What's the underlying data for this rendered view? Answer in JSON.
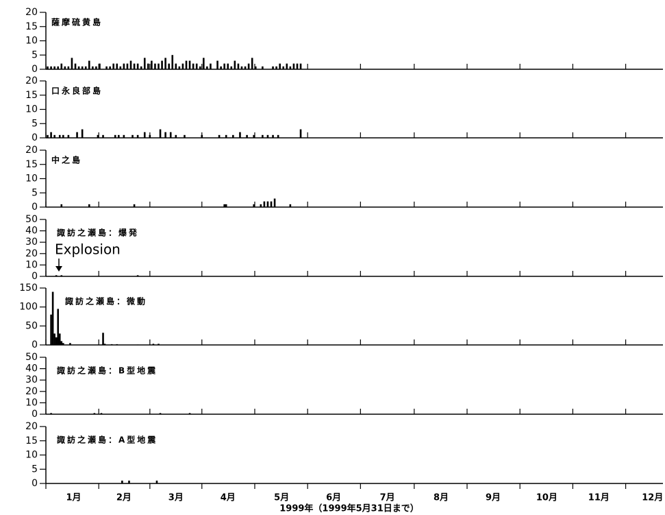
{
  "chart_data": [
    {
      "type": "bar",
      "title": "薩摩硫黄島",
      "color": "#000000",
      "xlim": [
        0,
        356
      ],
      "ylim": [
        0,
        20
      ],
      "yticks": [
        0,
        5,
        10,
        15,
        20
      ],
      "x": [
        1,
        3,
        5,
        7,
        9,
        11,
        13,
        15,
        17,
        19,
        21,
        23,
        25,
        27,
        29,
        31,
        35,
        37,
        39,
        41,
        43,
        45,
        47,
        49,
        51,
        53,
        55,
        57,
        59,
        61,
        63,
        65,
        67,
        69,
        71,
        73,
        75,
        77,
        79,
        81,
        83,
        85,
        87,
        89,
        91,
        93,
        95,
        99,
        101,
        103,
        105,
        107,
        109,
        111,
        113,
        115,
        117,
        119,
        121,
        125,
        131,
        133,
        135,
        137,
        139,
        141,
        143,
        145,
        147
      ],
      "values": [
        1,
        1,
        1,
        1,
        2,
        1,
        1,
        4,
        2,
        1,
        1,
        1,
        3,
        1,
        1,
        2,
        1,
        1,
        2,
        2,
        1,
        2,
        2,
        3,
        2,
        2,
        1,
        4,
        2,
        3,
        2,
        2,
        3,
        4,
        2,
        5,
        2,
        1,
        2,
        3,
        3,
        2,
        2,
        1,
        4,
        1,
        2,
        3,
        1,
        2,
        2,
        1,
        3,
        2,
        1,
        1,
        2,
        4,
        1,
        1,
        1,
        1,
        2,
        1,
        2,
        1,
        2,
        2,
        2
      ]
    },
    {
      "type": "bar",
      "title": "口永良部島",
      "color": "#000000",
      "xlim": [
        0,
        356
      ],
      "ylim": [
        0,
        20
      ],
      "yticks": [
        0,
        5,
        10,
        15,
        20
      ],
      "x": [
        1,
        3,
        5,
        8,
        10,
        13,
        18,
        21,
        30,
        33,
        40,
        42,
        45,
        50,
        53,
        57,
        60,
        66,
        69,
        72,
        75,
        80,
        90,
        100,
        104,
        108,
        112,
        116,
        120,
        125,
        128,
        131,
        134,
        147
      ],
      "values": [
        1,
        2,
        1,
        1,
        1,
        1,
        2,
        3,
        1,
        1,
        1,
        1,
        1,
        1,
        1,
        2,
        1,
        3,
        2,
        2,
        1,
        1,
        1,
        1,
        1,
        1,
        2,
        1,
        1,
        1,
        1,
        1,
        1,
        3
      ]
    },
    {
      "type": "bar",
      "title": "中之島",
      "color": "#000000",
      "xlim": [
        0,
        356
      ],
      "ylim": [
        0,
        20
      ],
      "yticks": [
        0,
        5,
        10,
        15,
        20
      ],
      "x": [
        9,
        25,
        51,
        103,
        104,
        120,
        124,
        126,
        128,
        130,
        132,
        141
      ],
      "values": [
        1,
        1,
        1,
        1,
        1,
        1,
        1,
        2,
        2,
        2,
        3,
        1
      ]
    },
    {
      "type": "bar",
      "title": "諏訪之瀬島：爆発",
      "annotation": "Explosion",
      "color": "#000000",
      "xlim": [
        0,
        356
      ],
      "ylim": [
        0,
        50
      ],
      "yticks": [
        0,
        10,
        20,
        30,
        40,
        50
      ],
      "x": [
        6,
        9,
        53
      ],
      "values": [
        1,
        1,
        1
      ]
    },
    {
      "type": "bar",
      "title": "諏訪之瀬島：微動",
      "color": "#000000",
      "xlim": [
        0,
        356
      ],
      "ylim": [
        0,
        150
      ],
      "yticks": [
        0,
        50,
        100,
        150
      ],
      "x": [
        3,
        4,
        5,
        6,
        7,
        8,
        9,
        10,
        14,
        33,
        34,
        38,
        41,
        53,
        62,
        65
      ],
      "values": [
        80,
        140,
        30,
        20,
        95,
        30,
        10,
        5,
        5,
        32,
        3,
        2,
        2,
        1,
        3,
        3
      ]
    },
    {
      "type": "bar",
      "title": "諏訪之瀬島：B型地震",
      "color": "#000000",
      "xlim": [
        0,
        356
      ],
      "ylim": [
        0,
        50
      ],
      "yticks": [
        0,
        10,
        20,
        30,
        40,
        50
      ],
      "x": [
        3,
        28,
        32,
        66,
        83
      ],
      "values": [
        1,
        1,
        1,
        1,
        1
      ]
    },
    {
      "type": "bar",
      "title": "諏訪之瀬島：A型地震",
      "color": "#000000",
      "xlim": [
        0,
        356
      ],
      "ylim": [
        0,
        20
      ],
      "yticks": [
        0,
        5,
        10,
        15,
        20
      ],
      "x": [
        44,
        48,
        64
      ],
      "values": [
        1,
        1,
        1
      ],
      "xlabel": "1999年（1999年5月31日まで）",
      "xticks": [
        {
          "value": 16,
          "label": "1月"
        },
        {
          "value": 45,
          "label": "2月"
        },
        {
          "value": 75,
          "label": "3月"
        },
        {
          "value": 105,
          "label": "4月"
        },
        {
          "value": 136,
          "label": "5月"
        },
        {
          "value": 166,
          "label": "6月"
        },
        {
          "value": 197,
          "label": "7月"
        },
        {
          "value": 228,
          "label": "8月"
        },
        {
          "value": 258,
          "label": "9月"
        },
        {
          "value": 289,
          "label": "10月"
        },
        {
          "value": 319,
          "label": "11月"
        },
        {
          "value": 350,
          "label": "12月"
        }
      ]
    }
  ]
}
